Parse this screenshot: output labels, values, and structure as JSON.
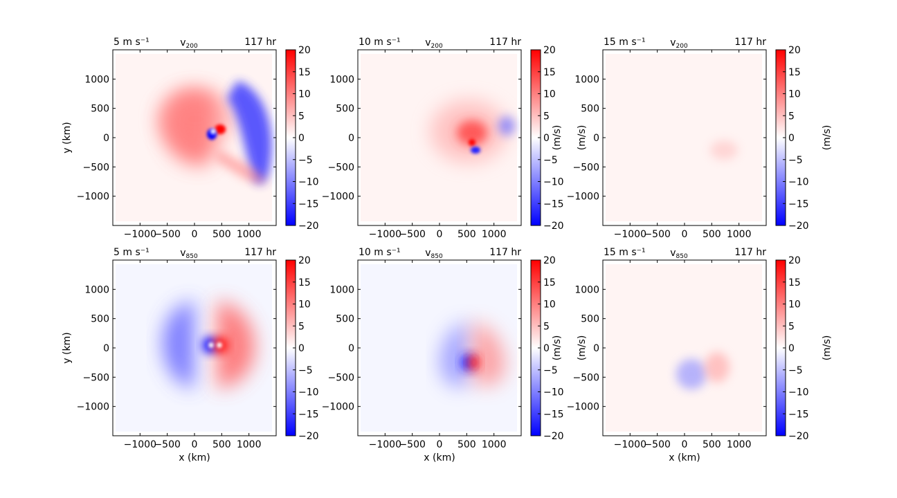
{
  "colormap": {
    "name": "bwr",
    "min_color": "#0000ff",
    "mid_color": "#ffffff",
    "max_color": "#ff0000"
  },
  "chart_data": [
    {
      "type": "heatmap",
      "title_left": "5 m s⁻¹",
      "title_center": "v",
      "title_center_sub": "200",
      "title_right": "117 hr",
      "xlabel": "",
      "ylabel": "y (km)",
      "cbar_label": "",
      "xticks": [
        "−1000",
        "−500",
        "0",
        "500",
        "1000"
      ],
      "yticks": [
        "1000",
        "500",
        "0",
        "−500",
        "−1000"
      ],
      "xlim": [
        -1500,
        1500
      ],
      "ylim": [
        -1500,
        1500
      ],
      "cbar_ticks": [
        "20",
        "15",
        "10",
        "5",
        "0",
        "−5",
        "−10",
        "−15",
        "−20"
      ],
      "cbar_range": [
        -20,
        20
      ]
    },
    {
      "type": "heatmap",
      "title_left": "10 m s⁻¹",
      "title_center": "v",
      "title_center_sub": "200",
      "title_right": "117 hr",
      "xlabel": "",
      "ylabel": "",
      "cbar_label": "(m/s)",
      "xticks": [
        "−1000",
        "−500",
        "0",
        "500",
        "1000"
      ],
      "yticks": [
        "1000",
        "500",
        "0",
        "−500",
        "−1000"
      ],
      "xlim": [
        -1500,
        1500
      ],
      "ylim": [
        -1500,
        1500
      ],
      "cbar_ticks": [
        "20",
        "15",
        "10",
        "5",
        "0",
        "−5",
        "−10",
        "−15",
        "−20"
      ],
      "cbar_range": [
        -20,
        20
      ]
    },
    {
      "type": "heatmap",
      "title_left": "15 m s⁻¹",
      "title_center": "v",
      "title_center_sub": "200",
      "title_right": "117 hr",
      "xlabel": "",
      "ylabel": "(m/s)",
      "cbar_label": "(m/s)",
      "xticks": [
        "−1000",
        "−500",
        "0",
        "500",
        "1000"
      ],
      "yticks": [
        "1000",
        "500",
        "0",
        "−500",
        "−1000"
      ],
      "xlim": [
        -1500,
        1500
      ],
      "ylim": [
        -1500,
        1500
      ],
      "cbar_ticks": [
        "20",
        "15",
        "10",
        "5",
        "0",
        "−5",
        "−10",
        "−15",
        "−20"
      ],
      "cbar_range": [
        -20,
        20
      ]
    },
    {
      "type": "heatmap",
      "title_left": "5 m s⁻¹",
      "title_center": "v",
      "title_center_sub": "850",
      "title_right": "117 hr",
      "xlabel": "x (km)",
      "ylabel": "y (km)",
      "cbar_label": "",
      "xticks": [
        "−1000",
        "−500",
        "0",
        "500",
        "1000"
      ],
      "yticks": [
        "1000",
        "500",
        "0",
        "−500",
        "−1000"
      ],
      "xlim": [
        -1500,
        1500
      ],
      "ylim": [
        -1500,
        1500
      ],
      "cbar_ticks": [
        "20",
        "15",
        "10",
        "5",
        "0",
        "−5",
        "−10",
        "−15",
        "−20"
      ],
      "cbar_range": [
        -20,
        20
      ]
    },
    {
      "type": "heatmap",
      "title_left": "10 m s⁻¹",
      "title_center": "v",
      "title_center_sub": "850",
      "title_right": "117 hr",
      "xlabel": "x (km)",
      "ylabel": "",
      "cbar_label": "(m/s)",
      "xticks": [
        "−1000",
        "−500",
        "0",
        "500",
        "1000"
      ],
      "yticks": [
        "1000",
        "500",
        "0",
        "−500",
        "−1000"
      ],
      "xlim": [
        -1500,
        1500
      ],
      "ylim": [
        -1500,
        1500
      ],
      "cbar_ticks": [
        "20",
        "15",
        "10",
        "5",
        "0",
        "−5",
        "−10",
        "−15",
        "−20"
      ],
      "cbar_range": [
        -20,
        20
      ]
    },
    {
      "type": "heatmap",
      "title_left": "15 m s⁻¹",
      "title_center": "v",
      "title_center_sub": "850",
      "title_right": "117 hr",
      "xlabel": "x (km)",
      "ylabel": "(m/s)",
      "cbar_label": "(m/s)",
      "xticks": [
        "−1000",
        "−500",
        "0",
        "500",
        "1000"
      ],
      "yticks": [
        "1000",
        "500",
        "0",
        "−500",
        "−1000"
      ],
      "xlim": [
        -1500,
        1500
      ],
      "ylim": [
        -1500,
        1500
      ],
      "cbar_ticks": [
        "20",
        "15",
        "10",
        "5",
        "0",
        "−5",
        "−10",
        "−15",
        "−20"
      ],
      "cbar_range": [
        -20,
        20
      ]
    }
  ]
}
